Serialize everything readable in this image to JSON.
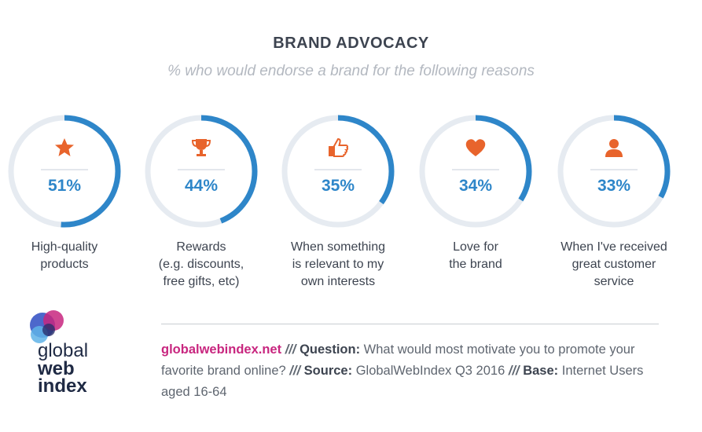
{
  "title": "BRAND ADVOCACY",
  "subtitle": "% who would endorse a brand for the following reasons",
  "colors": {
    "accent": "#2e86c9",
    "track": "#e6ebf1",
    "icon": "#e8642c",
    "brand": "#c8267f"
  },
  "chart_data": {
    "type": "donut",
    "title": "BRAND ADVOCACY",
    "subtitle": "% who would endorse a brand for the following reasons",
    "unit": "%",
    "items": [
      {
        "label": "High-quality\nproducts",
        "value": 51,
        "display": "51%",
        "icon": "star-icon"
      },
      {
        "label": "Rewards\n(e.g. discounts,\nfree gifts, etc)",
        "value": 44,
        "display": "44%",
        "icon": "trophy-icon"
      },
      {
        "label": "When something\nis relevant to my\nown interests",
        "value": 35,
        "display": "35%",
        "icon": "thumbs-up-icon"
      },
      {
        "label": "Love for\nthe brand",
        "value": 34,
        "display": "34%",
        "icon": "heart-icon"
      },
      {
        "label": "When I've received\ngreat customer\nservice",
        "value": 33,
        "display": "33%",
        "icon": "person-icon"
      }
    ]
  },
  "footer": {
    "site": "globalwebindex.net",
    "sep": "///",
    "question_label": "Question:",
    "question": "What would most motivate you to promote your favorite brand online?",
    "source_label": "Source:",
    "source": "GlobalWebIndex Q3 2016",
    "base_label": "Base:",
    "base": "Internet Users aged 16-64"
  },
  "logo": {
    "line1": "global",
    "line2": "web",
    "line3": "index"
  }
}
